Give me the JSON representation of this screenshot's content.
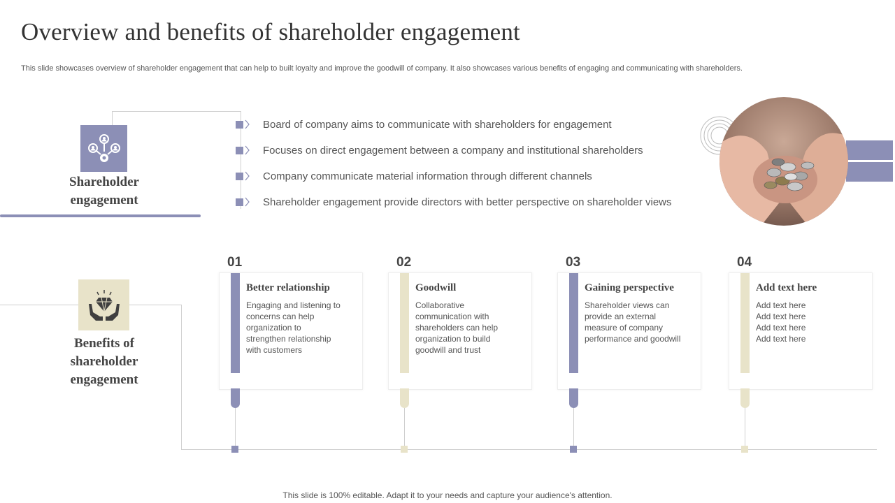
{
  "header": {
    "title": "Overview and benefits of  shareholder engagement",
    "subtitle": "This slide showcases overview of shareholder engagement that can help to  built loyalty and improve the goodwill of company. It also showcases various benefits of engaging and communicating with shareholders."
  },
  "colors": {
    "purple": "#8c8fb6",
    "beige": "#e8e3c9",
    "text": "#444444",
    "line": "#cfcfcf"
  },
  "overview": {
    "label": "Shareholder engagement",
    "icon": "network-people-icon",
    "bullets": [
      "Board of company aims to communicate with shareholders for engagement",
      "Focuses on direct engagement between a company and institutional shareholders",
      "Company communicate material information through different channels",
      "Shareholder engagement provide directors with better perspective on shareholder views"
    ],
    "image": "hands-holding-coins-photo"
  },
  "benefits": {
    "label": "Benefits of shareholder engagement",
    "icon": "hands-diamond-icon",
    "cards": [
      {
        "number": "01",
        "title": "Better relationship",
        "body": "Engaging and listening to\nconcerns can help\norganization to\nstrengthen relationship\nwith customers",
        "accent": "#8c8fb6"
      },
      {
        "number": "02",
        "title": "Goodwill",
        "body": "Collaborative\ncommunication with\nshareholders can help\norganization to build\ngoodwill  and trust",
        "accent": "#e8e3c9"
      },
      {
        "number": "03",
        "title": "Gaining perspective",
        "body": "Shareholder views can\nprovide  an external\nmeasure of company\nperformance  and goodwill",
        "accent": "#8c8fb6"
      },
      {
        "number": "04",
        "title": "Add text here",
        "body": "Add text here\nAdd text here\nAdd text here\nAdd text here",
        "accent": "#e8e3c9"
      }
    ]
  },
  "footer": {
    "text": "This slide is 100% editable. Adapt it to your needs and capture your audience's attention."
  }
}
